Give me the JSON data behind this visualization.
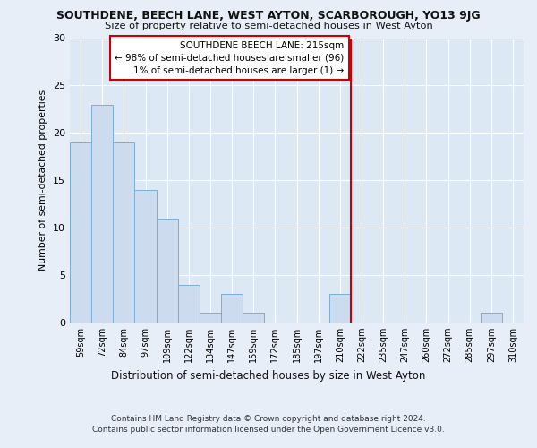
{
  "title": "SOUTHDENE, BEECH LANE, WEST AYTON, SCARBOROUGH, YO13 9JG",
  "subtitle": "Size of property relative to semi-detached houses in West Ayton",
  "xlabel": "Distribution of semi-detached houses by size in West Ayton",
  "ylabel": "Number of semi-detached properties",
  "categories": [
    "59sqm",
    "72sqm",
    "84sqm",
    "97sqm",
    "109sqm",
    "122sqm",
    "134sqm",
    "147sqm",
    "159sqm",
    "172sqm",
    "185sqm",
    "197sqm",
    "210sqm",
    "222sqm",
    "235sqm",
    "247sqm",
    "260sqm",
    "272sqm",
    "285sqm",
    "297sqm",
    "310sqm"
  ],
  "values": [
    19,
    23,
    19,
    14,
    11,
    4,
    1,
    3,
    1,
    0,
    0,
    0,
    3,
    0,
    0,
    0,
    0,
    0,
    0,
    1,
    0
  ],
  "bar_fill_color": "#ccdcee",
  "bar_edge_color": "#7aafd4",
  "annotation_line1": "SOUTHDENE BEECH LANE: 215sqm",
  "annotation_line2": "← 98% of semi-detached houses are smaller (96)",
  "annotation_line3": "1% of semi-detached houses are larger (1) →",
  "vline_color": "#cc0000",
  "ann_box_edge_color": "#cc0000",
  "ann_box_face_color": "#ffffff",
  "ylim_max": 30,
  "yticks": [
    0,
    5,
    10,
    15,
    20,
    25,
    30
  ],
  "plot_bg": "#dde8f5",
  "fig_bg": "#e8eef8",
  "grid_color": "#ffffff",
  "footer1": "Contains HM Land Registry data © Crown copyright and database right 2024.",
  "footer2": "Contains public sector information licensed under the Open Government Licence v3.0."
}
